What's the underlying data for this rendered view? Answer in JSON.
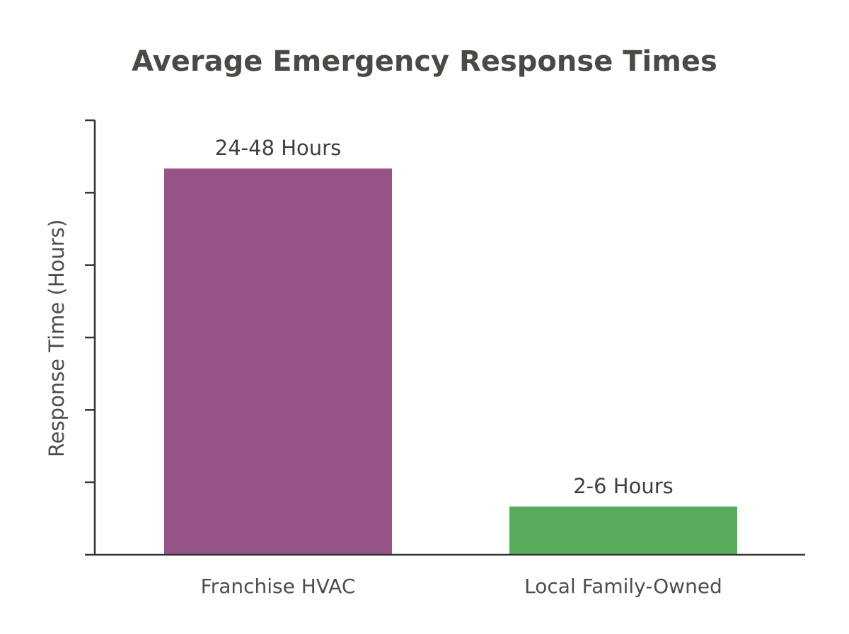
{
  "chart_data": {
    "type": "bar",
    "title": "Average Emergency Response Times",
    "xlabel": "",
    "ylabel": "Response Time (Hours)",
    "categories": [
      "Franchise HVAC",
      "Local Family-Owned"
    ],
    "values": [
      48,
      6
    ],
    "data_labels": [
      "24-48 Hours",
      "2-6 Hours"
    ],
    "colors": [
      "#965489",
      "#58ab5a"
    ],
    "ylim": [
      0,
      54
    ],
    "ytick_count": 6,
    "ytick_labels_shown": false,
    "grid": false,
    "legend": "none"
  }
}
